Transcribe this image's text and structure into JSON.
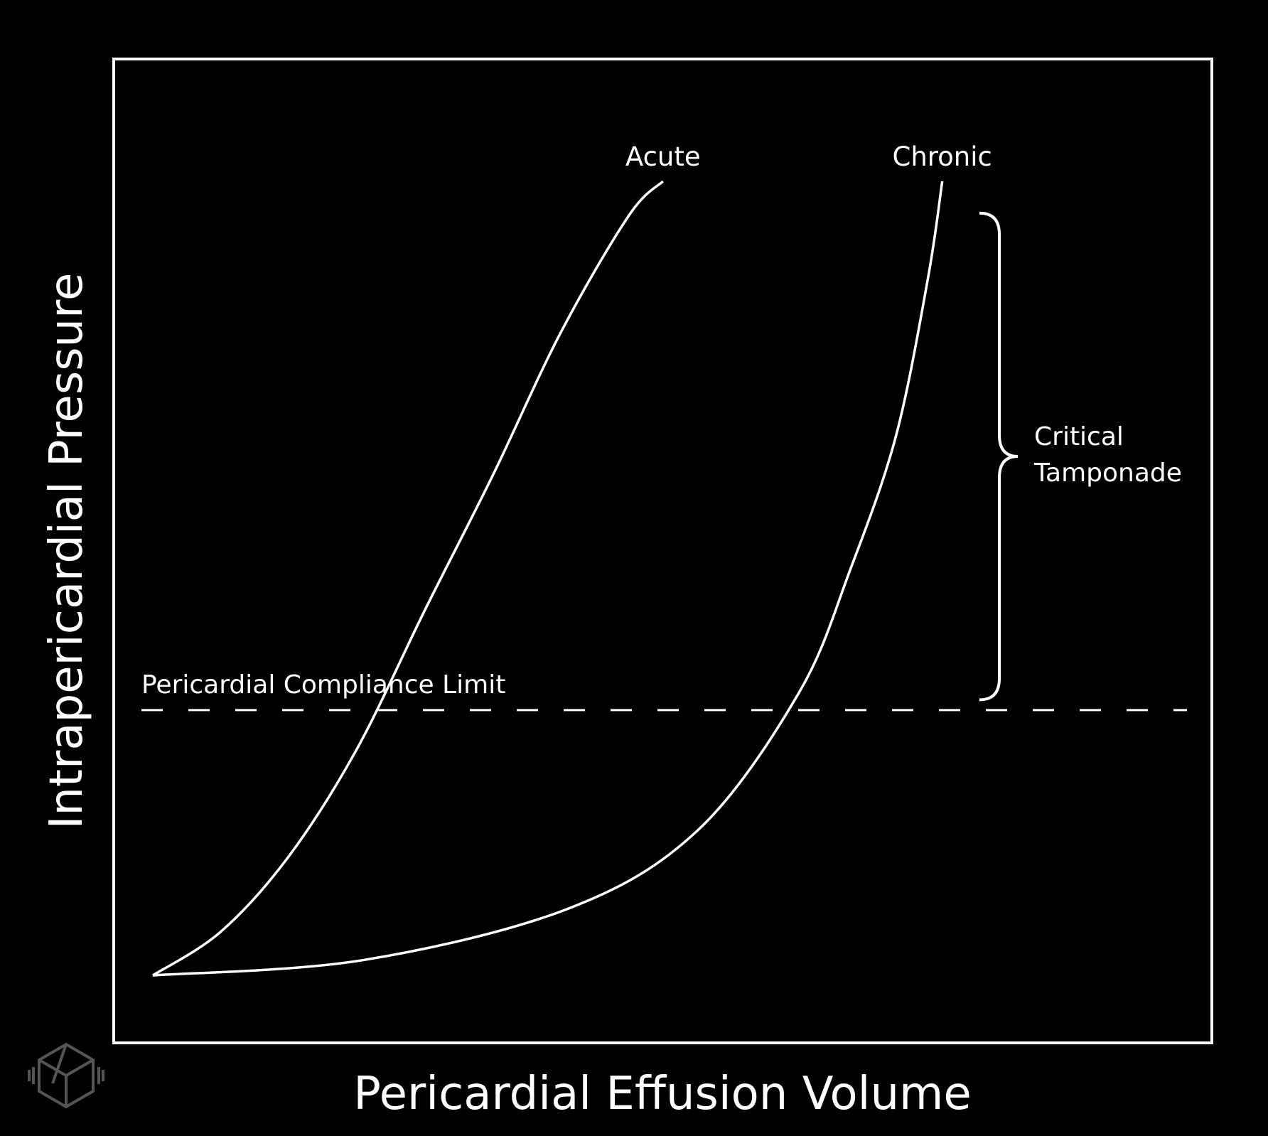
{
  "chart_data": {
    "type": "line",
    "title": "",
    "xlabel": "Pericardial Effusion Volume",
    "ylabel": "Intrapericardial Pressure",
    "xlim": [
      0,
      1
    ],
    "ylim": [
      0,
      1
    ],
    "grid": false,
    "background": "#000000",
    "foreground": "#ffffff",
    "series": [
      {
        "name": "Acute",
        "x": [
          0.0,
          0.066,
          0.132,
          0.198,
          0.264,
          0.33,
          0.396,
          0.462,
          0.495
        ],
        "y": [
          0.0,
          0.055,
          0.15,
          0.285,
          0.46,
          0.63,
          0.81,
          0.957,
          1.0
        ]
      },
      {
        "name": "Chronic",
        "x": [
          0.0,
          0.203,
          0.403,
          0.529,
          0.627,
          0.677,
          0.721,
          0.752,
          0.766
        ],
        "y": [
          0.0,
          0.019,
          0.084,
          0.183,
          0.356,
          0.512,
          0.679,
          0.877,
          1.0
        ]
      }
    ],
    "annotations": {
      "compliance_limit": {
        "label": "Pericardial Compliance Limit",
        "y": 0.334
      },
      "critical_tamponade": {
        "lines": [
          "Critical",
          "Tamponade"
        ],
        "y_range": [
          0.347,
          0.96
        ]
      }
    }
  }
}
